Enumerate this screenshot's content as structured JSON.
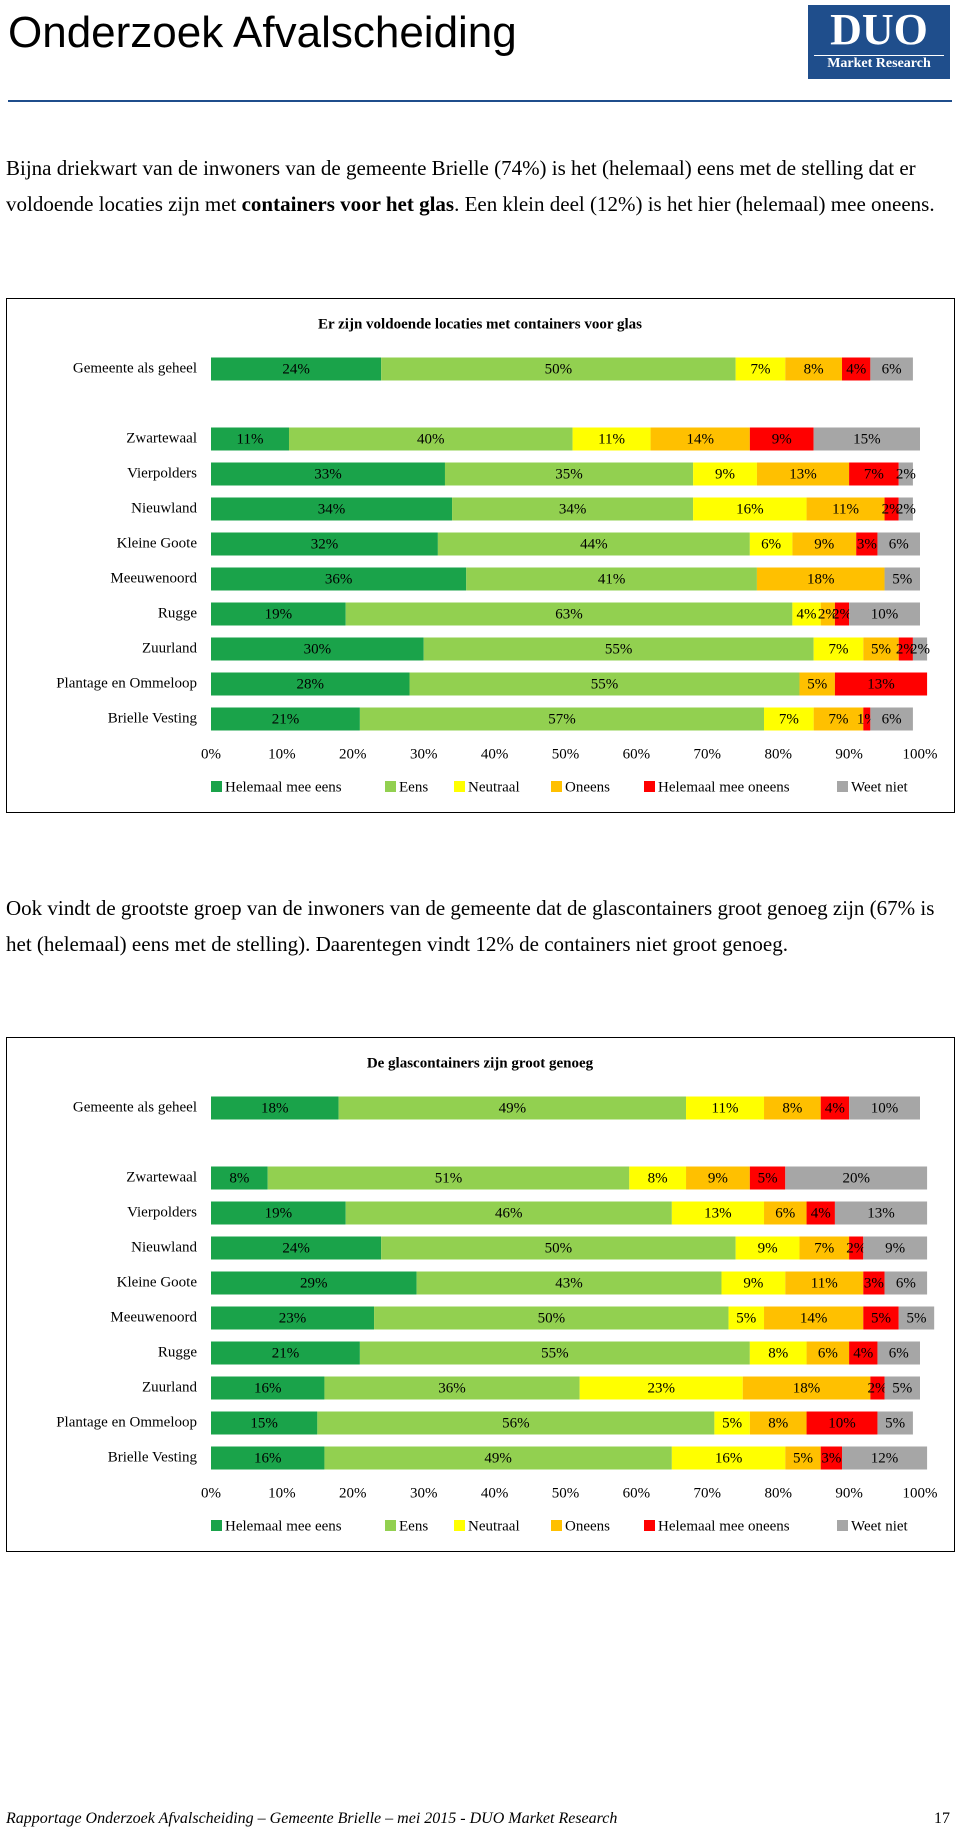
{
  "header": {
    "title": "Onderzoek Afvalscheiding",
    "logo": "DUO",
    "logo_sub": "Market Research"
  },
  "paragraphs": [
    {
      "before": "Bijna driekwart van de inwoners van de gemeente Brielle (74%) is het (helemaal) eens met de stelling dat er voldoende locaties zijn met ",
      "bold": "containers voor het glas",
      "after": ". Een klein deel (12%) is het hier (helemaal) mee oneens."
    },
    {
      "before": "Ook vindt de grootste groep van de inwoners van de gemeente dat de glascontainers groot genoeg zijn (67% is het (helemaal) eens met de stelling). Daarentegen vindt 12% de containers niet groot genoeg.",
      "bold": "",
      "after": ""
    }
  ],
  "chart_data": [
    {
      "type": "bar",
      "orientation": "horizontal",
      "stacked": true,
      "title": "Er zijn voldoende locaties met containers voor glas",
      "categories": [
        "Gemeente als geheel",
        "Zwartewaal",
        "Vierpolders",
        "Nieuwland",
        "Kleine Goote",
        "Meeuwenoord",
        "Rugge",
        "Zuurland",
        "Plantage en Ommeloop",
        "Brielle Vesting"
      ],
      "xlim": [
        0,
        100
      ],
      "xticks": [
        {
          "value": 0,
          "label": "0%"
        },
        {
          "value": 10,
          "label": "10%"
        },
        {
          "value": 20,
          "label": "20%"
        },
        {
          "value": 30,
          "label": "30%"
        },
        {
          "value": 40,
          "label": "40%"
        },
        {
          "value": 50,
          "label": "50%"
        },
        {
          "value": 60,
          "label": "60%"
        },
        {
          "value": 70,
          "label": "70%"
        },
        {
          "value": 80,
          "label": "80%"
        },
        {
          "value": 90,
          "label": "90%"
        },
        {
          "value": 100,
          "label": "100%"
        }
      ],
      "legend": "bottom",
      "series": [
        {
          "name": "Helemaal mee eens",
          "color": "#1aa34a",
          "values": [
            24,
            11,
            33,
            34,
            32,
            36,
            19,
            30,
            28,
            21
          ],
          "value_labels": [
            "24%",
            "11%",
            "33%",
            "34%",
            "32%",
            "36%",
            "19%",
            "30%",
            "28%",
            "21%"
          ]
        },
        {
          "name": "Eens",
          "color": "#92d050",
          "values": [
            50,
            40,
            35,
            34,
            44,
            41,
            63,
            55,
            55,
            57
          ],
          "value_labels": [
            "50%",
            "40%",
            "35%",
            "34%",
            "44%",
            "41%",
            "63%",
            "55%",
            "55%",
            "57%"
          ]
        },
        {
          "name": "Neutraal",
          "color": "#ffff00",
          "values": [
            7,
            11,
            9,
            16,
            6,
            0,
            4,
            7,
            0,
            7
          ],
          "value_labels": [
            "7%",
            "11%",
            "9%",
            "16%",
            "6%",
            null,
            "4%",
            "7%",
            null,
            "7%"
          ]
        },
        {
          "name": "Oneens",
          "color": "#ffc000",
          "values": [
            8,
            14,
            13,
            11,
            9,
            18,
            2,
            5,
            5,
            7
          ],
          "value_labels": [
            "8%",
            "14%",
            "13%",
            "11%",
            "9%",
            "18%",
            "2%",
            "5%",
            "5%",
            "7%"
          ]
        },
        {
          "name": "Helemaal mee oneens",
          "color": "#ff0000",
          "values": [
            4,
            9,
            7,
            2,
            3,
            0,
            2,
            2,
            13,
            1
          ],
          "value_labels": [
            "4%",
            "9%",
            "7%",
            "2%",
            "3%",
            null,
            "2%",
            "2%",
            "13%",
            "1%"
          ]
        },
        {
          "name": "Weet niet",
          "color": "#a6a6a6",
          "values": [
            6,
            15,
            2,
            2,
            6,
            5,
            10,
            2,
            0,
            6
          ],
          "value_labels": [
            "6%",
            "15%",
            "2%",
            "2%",
            "6%",
            "5%",
            "10%",
            "2%",
            null,
            "6%"
          ]
        }
      ]
    },
    {
      "type": "bar",
      "orientation": "horizontal",
      "stacked": true,
      "title": "De glascontainers zijn groot genoeg",
      "categories": [
        "Gemeente als geheel",
        "Zwartewaal",
        "Vierpolders",
        "Nieuwland",
        "Kleine Goote",
        "Meeuwenoord",
        "Rugge",
        "Zuurland",
        "Plantage en Ommeloop",
        "Brielle Vesting"
      ],
      "xlim": [
        0,
        100
      ],
      "xticks": [
        {
          "value": 0,
          "label": "0%"
        },
        {
          "value": 10,
          "label": "10%"
        },
        {
          "value": 20,
          "label": "20%"
        },
        {
          "value": 30,
          "label": "30%"
        },
        {
          "value": 40,
          "label": "40%"
        },
        {
          "value": 50,
          "label": "50%"
        },
        {
          "value": 60,
          "label": "60%"
        },
        {
          "value": 70,
          "label": "70%"
        },
        {
          "value": 80,
          "label": "80%"
        },
        {
          "value": 90,
          "label": "90%"
        },
        {
          "value": 100,
          "label": "100%"
        }
      ],
      "legend": "bottom",
      "series": [
        {
          "name": "Helemaal mee eens",
          "color": "#1aa34a",
          "values": [
            18,
            8,
            19,
            24,
            29,
            23,
            21,
            16,
            15,
            16
          ],
          "value_labels": [
            "18%",
            "8%",
            "19%",
            "24%",
            "29%",
            "23%",
            "21%",
            "16%",
            "15%",
            "16%"
          ]
        },
        {
          "name": "Eens",
          "color": "#92d050",
          "values": [
            49,
            51,
            46,
            50,
            43,
            50,
            55,
            36,
            56,
            49
          ],
          "value_labels": [
            "49%",
            "51%",
            "46%",
            "50%",
            "43%",
            "50%",
            "55%",
            "36%",
            "56%",
            "49%"
          ]
        },
        {
          "name": "Neutraal",
          "color": "#ffff00",
          "values": [
            11,
            8,
            13,
            9,
            9,
            5,
            8,
            23,
            5,
            16
          ],
          "value_labels": [
            "11%",
            "8%",
            "13%",
            "9%",
            "9%",
            "5%",
            "8%",
            "23%",
            "5%",
            "16%"
          ]
        },
        {
          "name": "Oneens",
          "color": "#ffc000",
          "values": [
            8,
            9,
            6,
            7,
            11,
            14,
            6,
            18,
            8,
            5
          ],
          "value_labels": [
            "8%",
            "9%",
            "6%",
            "7%",
            "11%",
            "14%",
            "6%",
            "18%",
            "8%",
            "5%"
          ]
        },
        {
          "name": "Helemaal mee oneens",
          "color": "#ff0000",
          "values": [
            4,
            5,
            4,
            2,
            3,
            5,
            4,
            2,
            10,
            3
          ],
          "value_labels": [
            "4%",
            "5%",
            "4%",
            "2%",
            "3%",
            "5%",
            "4%",
            "2%",
            "10%",
            "3%"
          ]
        },
        {
          "name": "Weet niet",
          "color": "#a6a6a6",
          "values": [
            10,
            20,
            13,
            9,
            6,
            5,
            6,
            5,
            5,
            12
          ],
          "value_labels": [
            "10%",
            "20%",
            "13%",
            "9%",
            "6%",
            "5%",
            "6%",
            "5%",
            "5%",
            "12%"
          ]
        }
      ]
    }
  ],
  "footer": {
    "text": "Rapportage Onderzoek Afvalscheiding – Gemeente Brielle – mei 2015 - DUO Market Research",
    "page": "17"
  }
}
